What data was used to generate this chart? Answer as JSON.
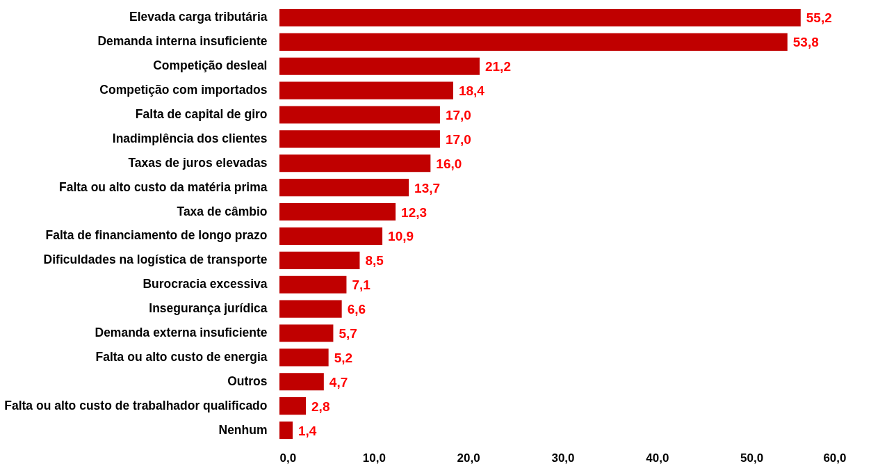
{
  "chart_data": {
    "type": "bar",
    "orientation": "horizontal",
    "categories": [
      "Elevada carga tributária",
      "Demanda interna insuficiente",
      "Competição desleal",
      "Competição com importados",
      "Falta de capital de giro",
      "Inadimplência dos clientes",
      "Taxas de juros elevadas",
      "Falta ou alto custo da matéria prima",
      "Taxa de câmbio",
      "Falta de financiamento de longo prazo",
      "Dificuldades na logística de transporte",
      "Burocracia excessiva",
      "Insegurança jurídica",
      "Demanda externa insuficiente",
      "Falta ou alto custo de energia",
      "Outros",
      "Falta ou alto custo de trabalhador qualificado",
      "Nenhum"
    ],
    "values": [
      55.2,
      53.8,
      21.2,
      18.4,
      17.0,
      17.0,
      16.0,
      13.7,
      12.3,
      10.9,
      8.5,
      7.1,
      6.6,
      5.7,
      5.2,
      4.7,
      2.8,
      1.4
    ],
    "value_labels": [
      "55,2",
      "53,8",
      "21,2",
      "18,4",
      "17,0",
      "17,0",
      "16,0",
      "13,7",
      "12,3",
      "10,9",
      "8,5",
      "7,1",
      "6,6",
      "5,7",
      "5,2",
      "4,7",
      "2,8",
      "1,4"
    ],
    "color": "#c00000",
    "xlim": [
      0,
      60
    ],
    "xticks": [
      {
        "value": 0,
        "label": "0,0"
      },
      {
        "value": 10,
        "label": "10,0"
      },
      {
        "value": 20,
        "label": "20,0"
      },
      {
        "value": 30,
        "label": "30,0"
      },
      {
        "value": 40,
        "label": "40,0"
      },
      {
        "value": 50,
        "label": "50,0"
      },
      {
        "value": 60,
        "label": "60,0"
      }
    ],
    "grid": false
  }
}
